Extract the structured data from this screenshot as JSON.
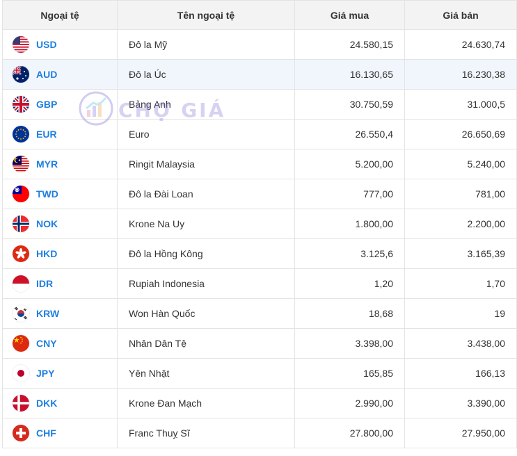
{
  "table": {
    "headers": {
      "code": "Ngoại tệ",
      "name": "Tên ngoại tệ",
      "buy": "Giá mua",
      "sell": "Giá bán"
    },
    "rows": [
      {
        "code": "USD",
        "name": "Đô la Mỹ",
        "buy": "24.580,15",
        "sell": "24.630,74",
        "buy_trend": "up",
        "sell_trend": "up",
        "flag_icon": "us-flag-icon"
      },
      {
        "code": "AUD",
        "name": "Đô la Úc",
        "buy": "16.130,65",
        "sell": "16.230,38",
        "buy_trend": "down",
        "sell_trend": "down",
        "flag_icon": "au-flag-icon"
      },
      {
        "code": "GBP",
        "name": "Bảng Anh",
        "buy": "30.750,59",
        "sell": "31.000,5",
        "buy_trend": "down",
        "sell_trend": "down",
        "flag_icon": "gb-flag-icon"
      },
      {
        "code": "EUR",
        "name": "Euro",
        "buy": "26.550,4",
        "sell": "26.650,69",
        "buy_trend": "up",
        "sell_trend": "up",
        "flag_icon": "eu-flag-icon"
      },
      {
        "code": "MYR",
        "name": "Ringit Malaysia",
        "buy": "5.200,00",
        "sell": "5.240,00",
        "buy_trend": "up",
        "sell_trend": "up",
        "flag_icon": "my-flag-icon"
      },
      {
        "code": "TWD",
        "name": "Đô la Đài Loan",
        "buy": "777,00",
        "sell": "781,00",
        "buy_trend": "down",
        "sell_trend": "up",
        "flag_icon": "tw-flag-icon"
      },
      {
        "code": "NOK",
        "name": "Krone Na Uy",
        "buy": "1.800,00",
        "sell": "2.200,00",
        "buy_trend": "up",
        "sell_trend": "up",
        "flag_icon": "no-flag-icon"
      },
      {
        "code": "HKD",
        "name": "Đô la Hồng Kông",
        "buy": "3.125,6",
        "sell": "3.165,39",
        "buy_trend": "down",
        "sell_trend": "down",
        "flag_icon": "hk-flag-icon"
      },
      {
        "code": "IDR",
        "name": "Rupiah Indonesia",
        "buy": "1,20",
        "sell": "1,70",
        "buy_trend": "down",
        "sell_trend": "down",
        "flag_icon": "id-flag-icon"
      },
      {
        "code": "KRW",
        "name": "Won Hàn Quốc",
        "buy": "18,68",
        "sell": "19",
        "buy_trend": "flat",
        "sell_trend": "flat",
        "flag_icon": "kr-flag-icon"
      },
      {
        "code": "CNY",
        "name": "Nhân Dân Tệ",
        "buy": "3.398,00",
        "sell": "3.438,00",
        "buy_trend": "up",
        "sell_trend": "up",
        "flag_icon": "cn-flag-icon"
      },
      {
        "code": "JPY",
        "name": "Yên Nhật",
        "buy": "165,85",
        "sell": "166,13",
        "buy_trend": "down",
        "sell_trend": "down",
        "flag_icon": "jp-flag-icon"
      },
      {
        "code": "DKK",
        "name": "Krone Đan Mạch",
        "buy": "2.990,00",
        "sell": "3.390,00",
        "buy_trend": "up",
        "sell_trend": "up",
        "flag_icon": "dk-flag-icon"
      },
      {
        "code": "CHF",
        "name": "Franc Thuỵ Sĩ",
        "buy": "27.800,00",
        "sell": "27.950,00",
        "buy_trend": "down",
        "sell_trend": "down",
        "flag_icon": "ch-flag-icon"
      }
    ]
  },
  "watermark": {
    "text": "CHỢ GIÁ",
    "icon": "chogia-logo-icon"
  },
  "colors": {
    "up": "#e3000f",
    "down": "#14c48a",
    "flat": "#222222",
    "code": "#1e7fe0",
    "highlight_row": "#f1f6fd"
  }
}
